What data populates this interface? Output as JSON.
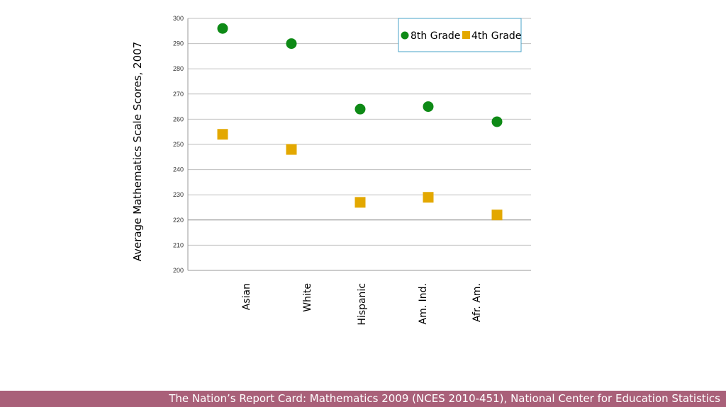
{
  "chart_data": {
    "type": "scatter",
    "categories": [
      "Asian",
      "White",
      "Hispanic",
      "Am. Ind.",
      "Afr. Am."
    ],
    "series": [
      {
        "name": "8th Grade",
        "marker": "circle",
        "color": "#0e8a16",
        "values": [
          296,
          290,
          264,
          265,
          259
        ]
      },
      {
        "name": "4th Grade",
        "marker": "square",
        "color": "#e3a800",
        "values": [
          254,
          248,
          227,
          229,
          222
        ]
      }
    ],
    "ylabel": "Average Mathematics Scale Scores, 2007",
    "ylim": [
      200,
      300
    ],
    "yticks": [
      200,
      210,
      220,
      230,
      240,
      250,
      260,
      270,
      280,
      290,
      300
    ],
    "grid": true,
    "legend": "top-right"
  },
  "footer": {
    "source": "The Nation’s Report Card: Mathematics 2009 (NCES 2010-451), National Center for Education Statistics"
  },
  "colors": {
    "footer_bar": "#a96079",
    "gridline": "#bfbfbf",
    "legend_border": "#4aa3c8"
  }
}
